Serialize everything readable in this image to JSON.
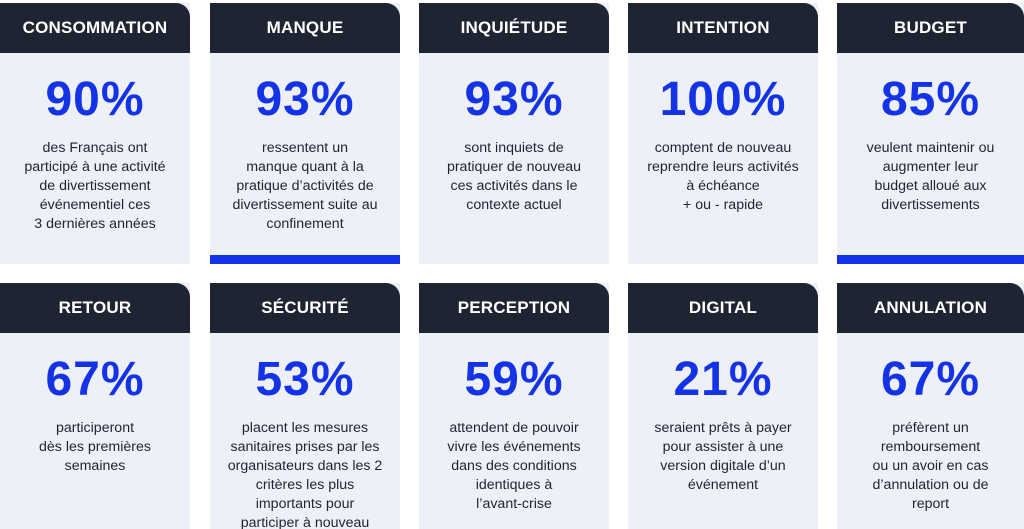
{
  "accent_color": "#1433e6",
  "header_color": "#1f2433",
  "card_background": "#edf0f7",
  "cards": [
    {
      "title": "CONSOMMATION",
      "value": "90%",
      "description": "des Français ont\nparticipé à une activité\nde divertissement\névénementiel ces\n3 dernières années",
      "accent": false
    },
    {
      "title": "MANQUE",
      "value": "93%",
      "description": "ressentent un\nmanque quant à la\npratique d’activités de\ndivertissement suite au\nconfinement",
      "accent": true
    },
    {
      "title": "INQUIÉTUDE",
      "value": "93%",
      "description": "sont inquiets de\npratiquer de nouveau\nces activités dans le\ncontexte actuel",
      "accent": false
    },
    {
      "title": "INTENTION",
      "value": "100%",
      "description": "comptent de nouveau\nreprendre leurs activités\nà échéance\n+ ou - rapide",
      "accent": false
    },
    {
      "title": "BUDGET",
      "value": "85%",
      "description": "veulent maintenir ou\naugmenter leur\nbudget alloué aux\ndivertissements",
      "accent": true
    },
    {
      "title": "RETOUR",
      "value": "67%",
      "description": "participeront\ndès les premières\nsemaines",
      "accent": false
    },
    {
      "title": "SÉCURITÉ",
      "value": "53%",
      "description": "placent les mesures\nsanitaires prises par les\norganisateurs dans les 2\ncritères les plus\nimportants pour\nparticiper à nouveau",
      "accent": false
    },
    {
      "title": "PERCEPTION",
      "value": "59%",
      "description": "attendent de pouvoir\nvivre les événements\ndans des conditions\nidentiques à\nl’avant-crise",
      "accent": false
    },
    {
      "title": "DIGITAL",
      "value": "21%",
      "description": "seraient prêts à payer\npour assister à une\nversion digitale d’un\névénement",
      "accent": false
    },
    {
      "title": "ANNULATION",
      "value": "67%",
      "description": "préfèrent un\nremboursement\nou un avoir en cas\nd’annulation ou de\nreport",
      "accent": false
    }
  ]
}
